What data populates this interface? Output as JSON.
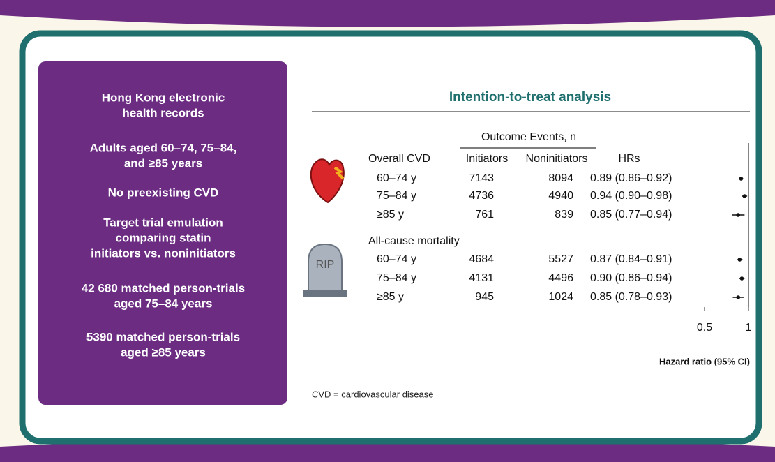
{
  "left_panel": {
    "items": [
      [
        "Hong Kong electronic",
        "health records"
      ],
      [
        "Adults aged 60–74, 75–84,",
        "and ≥85 years"
      ],
      [
        "No preexisting CVD"
      ],
      [
        "Target trial emulation",
        "comparing statin",
        "initiators vs. noninitiators"
      ],
      [
        "42 680 matched person-trials",
        "aged 75–84 years"
      ],
      [
        "5390 matched person-trials",
        "aged ≥85 years"
      ]
    ]
  },
  "forest": {
    "title": "Intention-to-treat analysis",
    "outcome_header": "Outcome Events, n",
    "columns": [
      "Initiators",
      "Noninitiators",
      "HRs"
    ],
    "groups": [
      {
        "name": "Overall CVD",
        "rows": [
          {
            "age": "60–74 y",
            "initiators": 7143,
            "noninitiators": 8094,
            "hr": 0.89,
            "ci": [
              0.86,
              0.92
            ],
            "hr_label": "0.89 (0.86–0.92)"
          },
          {
            "age": "75–84 y",
            "initiators": 4736,
            "noninitiators": 4940,
            "hr": 0.94,
            "ci": [
              0.9,
              0.98
            ],
            "hr_label": "0.94 (0.90–0.98)"
          },
          {
            "age": "≥85 y",
            "initiators": 761,
            "noninitiators": 839,
            "hr": 0.85,
            "ci": [
              0.77,
              0.94
            ],
            "hr_label": "0.85 (0.77–0.94)"
          }
        ]
      },
      {
        "name": "All-cause mortality",
        "rows": [
          {
            "age": "60–74 y",
            "initiators": 4684,
            "noninitiators": 5527,
            "hr": 0.87,
            "ci": [
              0.84,
              0.91
            ],
            "hr_label": "0.87 (0.84–0.91)"
          },
          {
            "age": "75–84 y",
            "initiators": 4131,
            "noninitiators": 4496,
            "hr": 0.9,
            "ci": [
              0.86,
              0.94
            ],
            "hr_label": "0.90 (0.86–0.94)"
          },
          {
            "age": "≥85 y",
            "initiators": 945,
            "noninitiators": 1024,
            "hr": 0.85,
            "ci": [
              0.78,
              0.93
            ],
            "hr_label": "0.85 (0.78–0.93)"
          }
        ]
      }
    ],
    "xlim": [
      0.5,
      1
    ],
    "xticks": [
      0.5,
      1
    ],
    "log_scale": true,
    "x_label": "Hazard ratio (95% CI)",
    "footnote": "CVD = cardiovascular disease"
  }
}
